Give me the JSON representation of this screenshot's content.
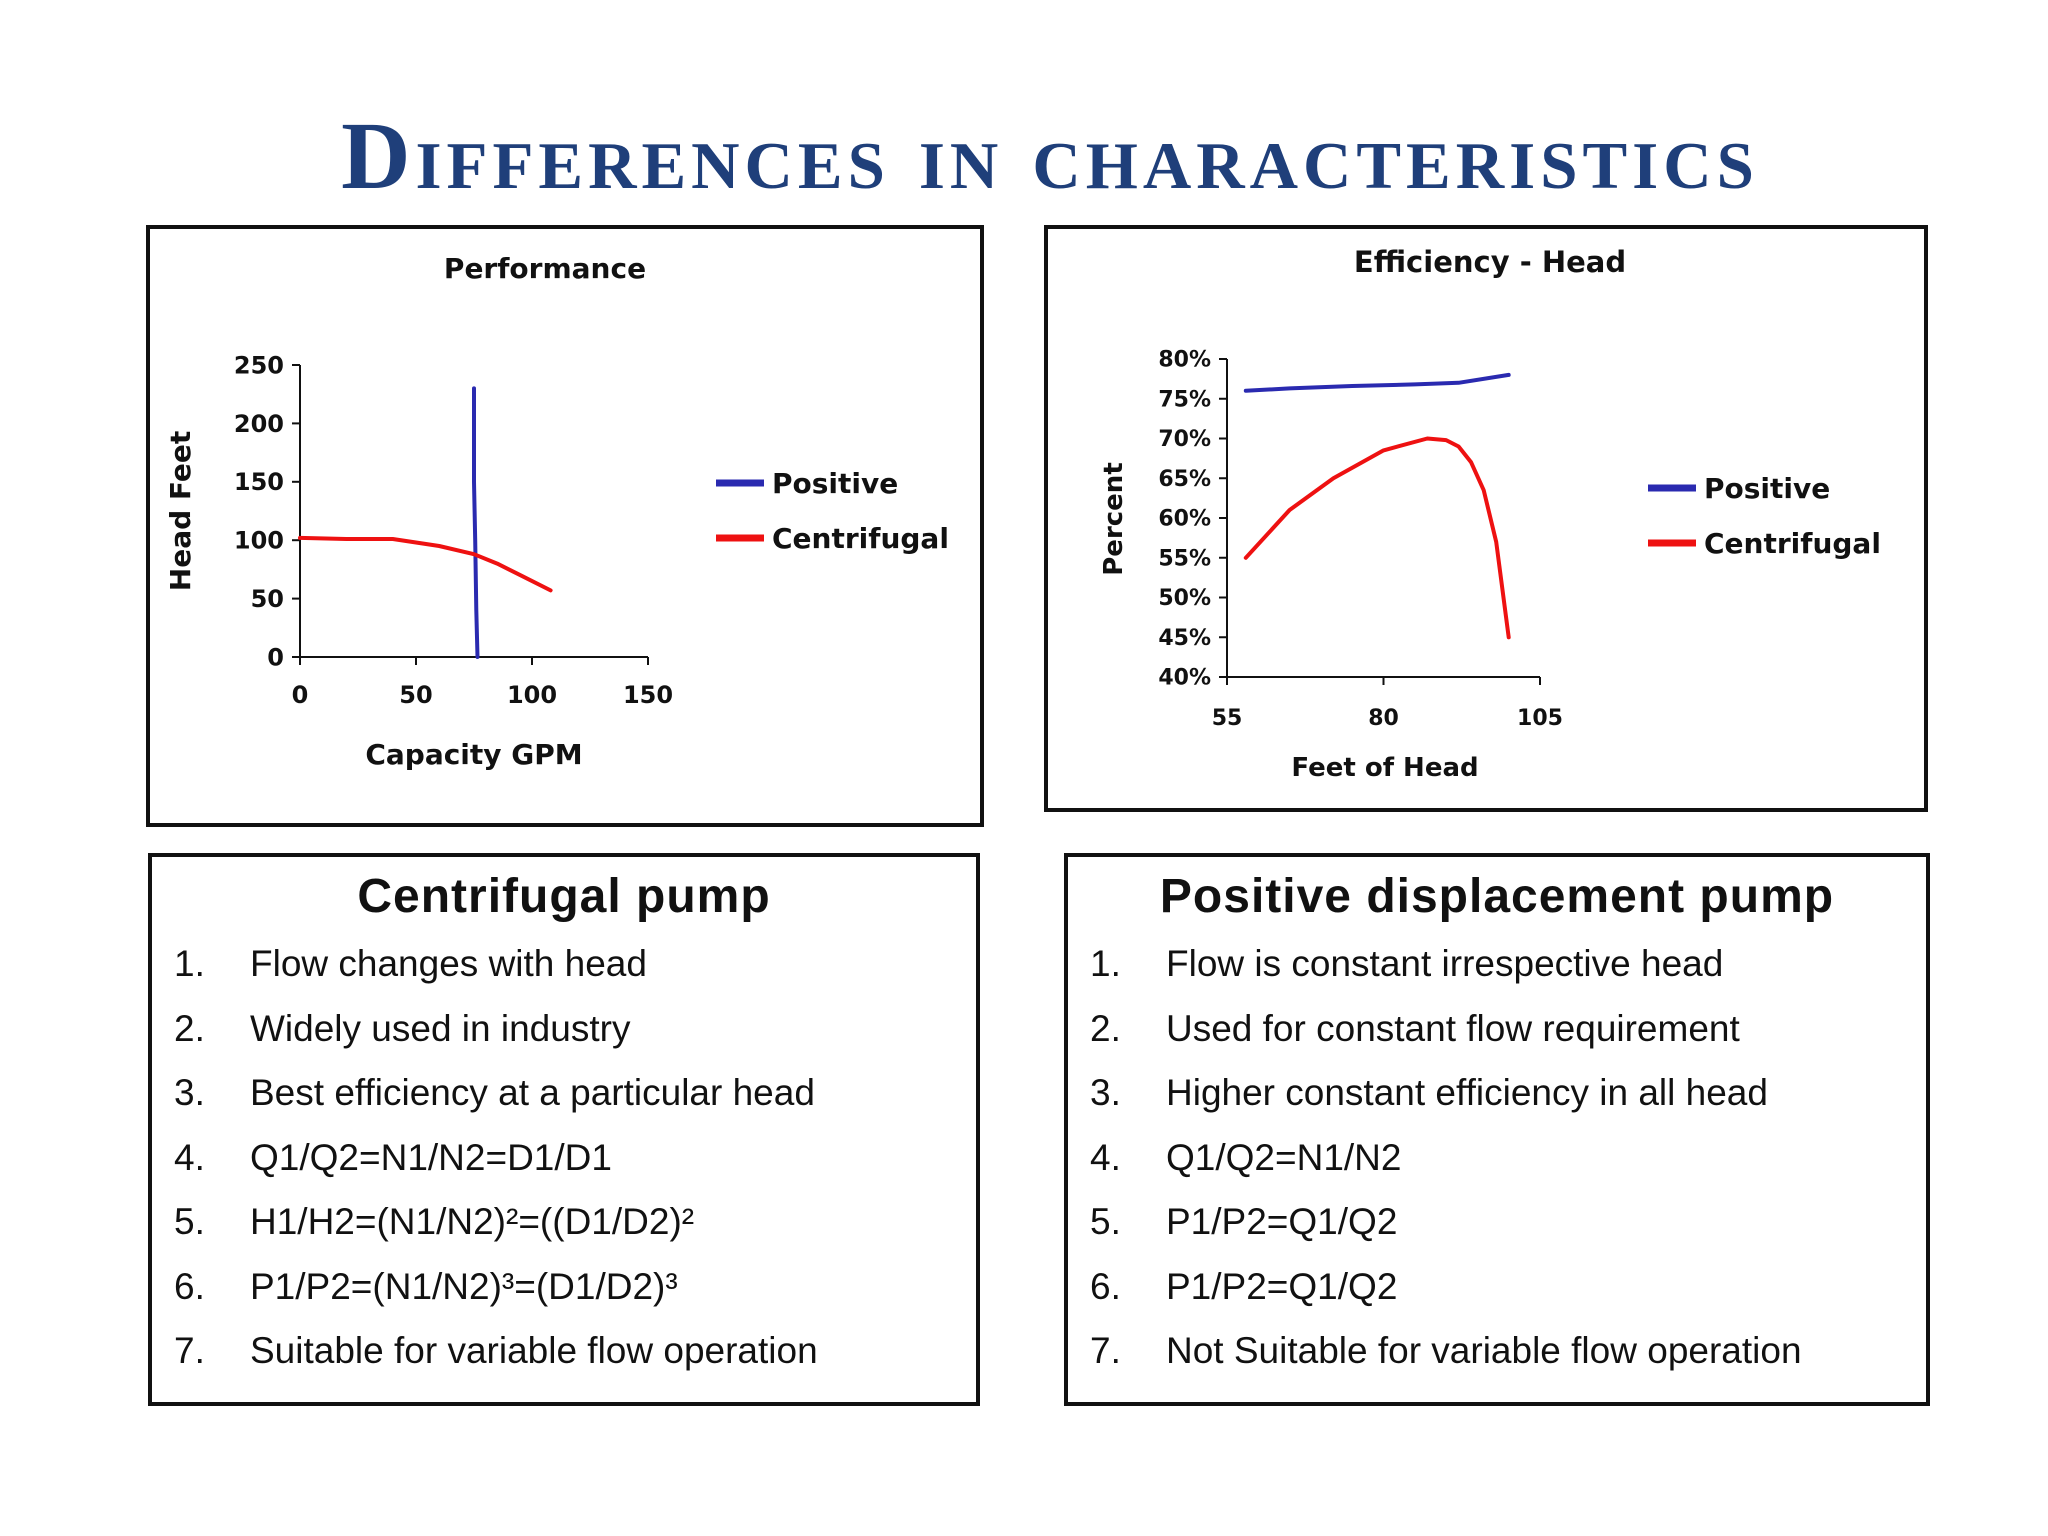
{
  "slide": {
    "title": "Differences in characteristics"
  },
  "colors": {
    "title": "#1f3f7a",
    "positive": "#2a2ab0",
    "centrifugal": "#ee1111"
  },
  "chart_data": [
    {
      "type": "line",
      "title": "Performance",
      "xlabel": "Capacity GPM",
      "ylabel": "Head Feet",
      "xlim": [
        0,
        150
      ],
      "ylim": [
        0,
        250
      ],
      "xticks": [
        "0",
        "50",
        "100",
        "150"
      ],
      "yticks": [
        "0",
        "50",
        "100",
        "150",
        "200",
        "250"
      ],
      "legend_position": "right",
      "grid": false,
      "series": [
        {
          "name": "Positive",
          "color": "#2a2ab0",
          "x": [
            75,
            75,
            75.5,
            76,
            76.5
          ],
          "y": [
            230,
            150,
            100,
            40,
            0
          ]
        },
        {
          "name": "Centrifugal",
          "color": "#ee1111",
          "x": [
            0,
            20,
            40,
            60,
            75,
            85,
            95,
            108
          ],
          "y": [
            102,
            101,
            101,
            95,
            88,
            80,
            70,
            57
          ]
        }
      ]
    },
    {
      "type": "line",
      "title": "Efficiency - Head",
      "xlabel": "Feet of Head",
      "ylabel": "Percent",
      "xlim": [
        55,
        105
      ],
      "ylim": [
        40,
        80
      ],
      "xticks": [
        "55",
        "80",
        "105"
      ],
      "yticks": [
        "40%",
        "45%",
        "50%",
        "55%",
        "60%",
        "65%",
        "70%",
        "75%",
        "80%"
      ],
      "legend_position": "right",
      "grid": false,
      "series": [
        {
          "name": "Positive",
          "color": "#2a2ab0",
          "x": [
            58,
            65,
            75,
            85,
            92,
            100
          ],
          "y": [
            76,
            76.3,
            76.6,
            76.8,
            77,
            78
          ]
        },
        {
          "name": "Centrifugal",
          "color": "#ee1111",
          "x": [
            58,
            65,
            72,
            80,
            87,
            90,
            92,
            94,
            96,
            98,
            100
          ],
          "y": [
            55,
            61,
            65,
            68.5,
            70,
            69.8,
            69,
            67,
            63.5,
            57,
            45
          ]
        }
      ]
    }
  ],
  "lists": {
    "centrifugal": {
      "heading": "Centrifugal pump",
      "items": [
        {
          "num": "1.",
          "text": "Flow changes with head"
        },
        {
          "num": "2.",
          "text": "Widely used in industry"
        },
        {
          "num": "3.",
          "text": "Best efficiency at a particular head"
        },
        {
          "num": "4.",
          "text": "Q1/Q2=N1/N2=D1/D1"
        },
        {
          "num": "5.",
          "text": "H1/H2=(N1/N2)²=((D1/D2)²"
        },
        {
          "num": "6.",
          "text": "P1/P2=(N1/N2)³=(D1/D2)³"
        },
        {
          "num": "7.",
          "text": "Suitable for variable flow operation"
        }
      ]
    },
    "positive": {
      "heading": "Positive displacement pump",
      "items": [
        {
          "num": "1.",
          "text": "Flow is constant irrespective head"
        },
        {
          "num": "2.",
          "text": "Used for constant flow requirement"
        },
        {
          "num": "3.",
          "text": "Higher constant efficiency in all head"
        },
        {
          "num": "4.",
          "text": "Q1/Q2=N1/N2"
        },
        {
          "num": "5.",
          "text": "P1/P2=Q1/Q2"
        },
        {
          "num": "6.",
          "text": "P1/P2=Q1/Q2"
        },
        {
          "num": "7.",
          "text": "Not Suitable for variable flow operation"
        }
      ]
    }
  }
}
